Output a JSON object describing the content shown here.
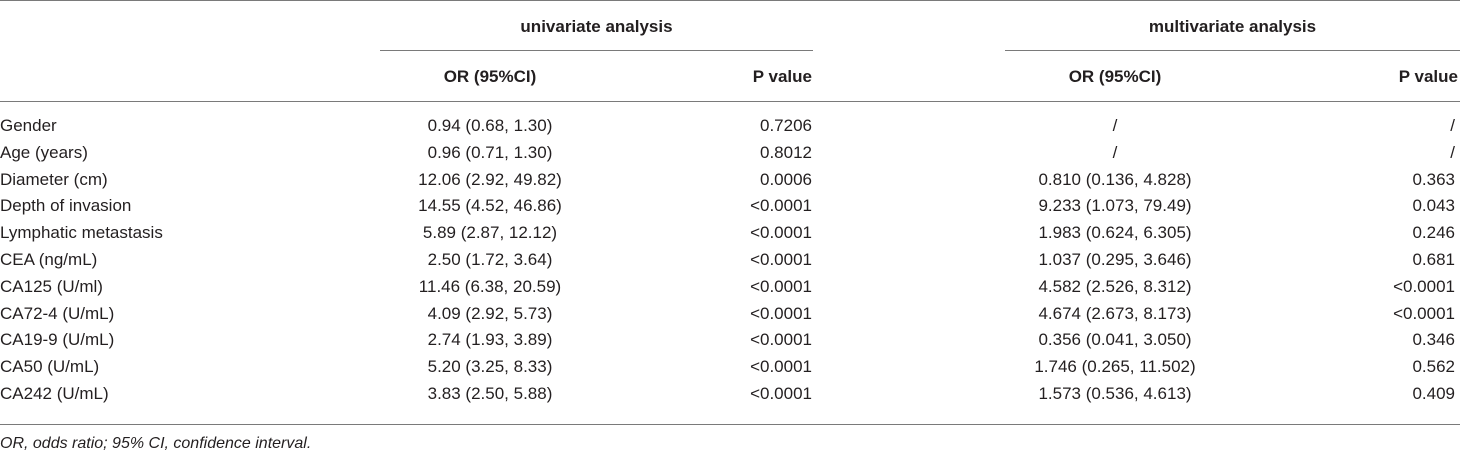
{
  "table": {
    "groups": [
      "univariate analysis",
      "multivariate analysis"
    ],
    "subheaders": [
      "OR (95%CI)",
      "P value",
      "OR (95%CI)",
      "P value"
    ],
    "rows": [
      {
        "label": "Gender",
        "uni_or": "0.94 (0.68, 1.30)",
        "uni_p": "0.7206",
        "multi_or": "/",
        "multi_p": "/"
      },
      {
        "label": "Age (years)",
        "uni_or": "0.96 (0.71, 1.30)",
        "uni_p": "0.8012",
        "multi_or": "/",
        "multi_p": "/"
      },
      {
        "label": "Diameter (cm)",
        "uni_or": "12.06 (2.92, 49.82)",
        "uni_p": "0.0006",
        "multi_or": "0.810 (0.136, 4.828)",
        "multi_p": "0.363"
      },
      {
        "label": "Depth of invasion",
        "uni_or": "14.55 (4.52, 46.86)",
        "uni_p": "<0.0001",
        "multi_or": "9.233 (1.073, 79.49)",
        "multi_p": "0.043"
      },
      {
        "label": "Lymphatic metastasis",
        "uni_or": "5.89 (2.87, 12.12)",
        "uni_p": "<0.0001",
        "multi_or": "1.983 (0.624, 6.305)",
        "multi_p": "0.246"
      },
      {
        "label": "CEA (ng/mL)",
        "uni_or": "2.50 (1.72, 3.64)",
        "uni_p": "<0.0001",
        "multi_or": "1.037 (0.295, 3.646)",
        "multi_p": "0.681"
      },
      {
        "label": "CA125 (U/ml)",
        "uni_or": "11.46 (6.38, 20.59)",
        "uni_p": "<0.0001",
        "multi_or": "4.582 (2.526, 8.312)",
        "multi_p": "<0.0001"
      },
      {
        "label": "CA72-4 (U/mL)",
        "uni_or": "4.09 (2.92, 5.73)",
        "uni_p": "<0.0001",
        "multi_or": "4.674 (2.673, 8.173)",
        "multi_p": "<0.0001"
      },
      {
        "label": "CA19-9 (U/mL)",
        "uni_or": "2.74 (1.93, 3.89)",
        "uni_p": "<0.0001",
        "multi_or": "0.356 (0.041, 3.050)",
        "multi_p": "0.346"
      },
      {
        "label": "CA50 (U/mL)",
        "uni_or": "5.20 (3.25, 8.33)",
        "uni_p": "<0.0001",
        "multi_or": "1.746 (0.265, 11.502)",
        "multi_p": "0.562"
      },
      {
        "label": "CA242 (U/mL)",
        "uni_or": "3.83 (2.50, 5.88)",
        "uni_p": "<0.0001",
        "multi_or": "1.573 (0.536, 4.613)",
        "multi_p": "0.409"
      }
    ],
    "footnote": "OR, odds ratio; 95% CI, confidence interval."
  }
}
